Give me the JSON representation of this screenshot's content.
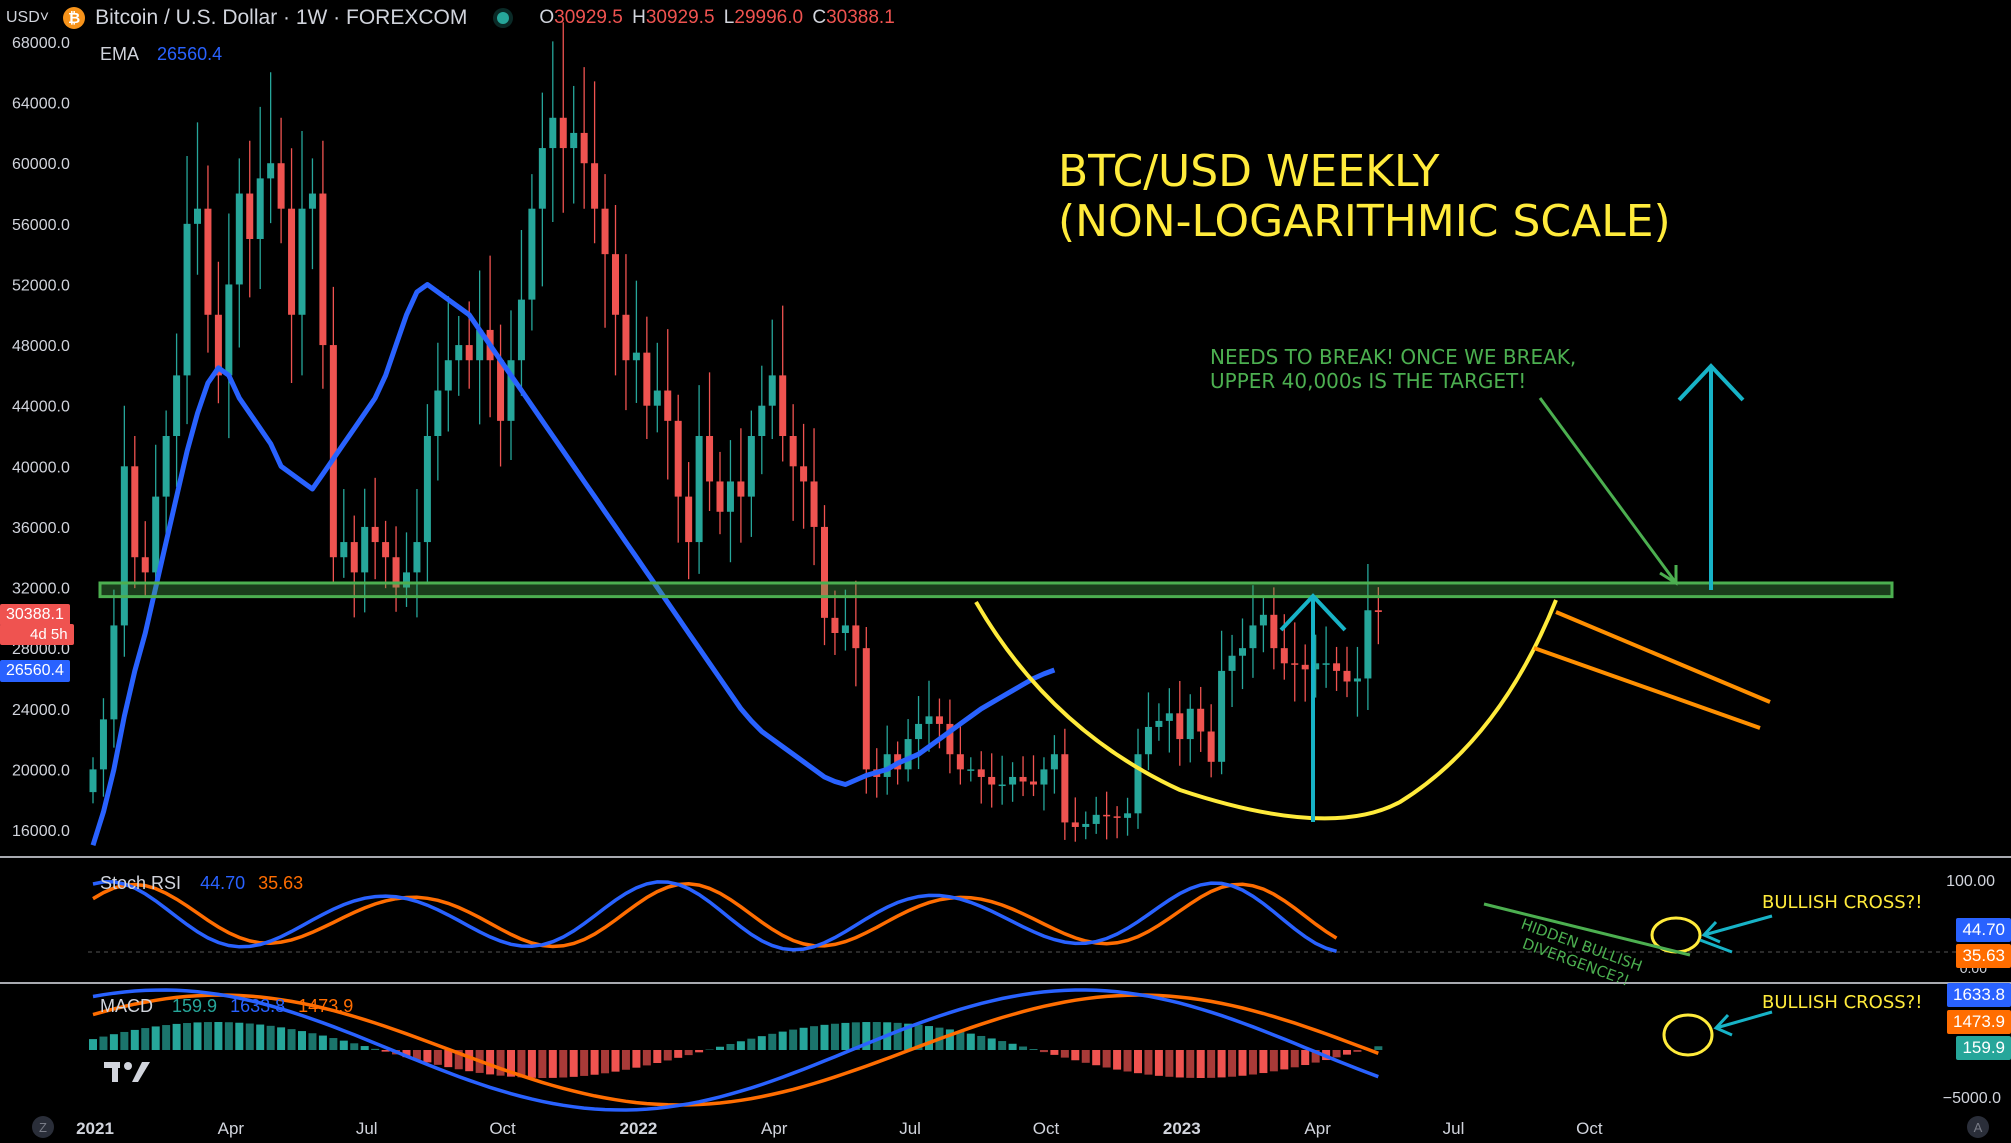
{
  "header": {
    "currency": "USD",
    "currency_caret": "˅",
    "coin_glyph": "₿",
    "symbol": "Bitcoin / U.S. Dollar · 1W · FOREXCOM",
    "ohlc": {
      "o_label": "O",
      "o": "30929.5",
      "h_label": "H",
      "h": "30929.5",
      "l_label": "L",
      "l": "29996.0",
      "c_label": "C",
      "c": "30388.1"
    }
  },
  "indicators": {
    "ema": {
      "label": "EMA",
      "value": "26560.4"
    },
    "stoch": {
      "label": "Stoch RSI",
      "k": "44.70",
      "d": "35.63"
    },
    "macd": {
      "label": "MACD",
      "hist": "159.9",
      "macd": "1633.8",
      "signal": "1473.9"
    }
  },
  "price_tags": {
    "last": "30388.1",
    "countdown": "4d 5h",
    "ema": "26560.4"
  },
  "scales": {
    "stoch_top": "100.00",
    "stoch_bottom": "0.00",
    "macd_bottom": "−5000.0",
    "stoch_k": "44.70",
    "stoch_d": "35.63",
    "macd_macd": "1633.8",
    "macd_signal": "1473.9",
    "macd_hist": "159.9"
  },
  "annotations": {
    "title_line1": "BTC/USD WEEKLY",
    "title_line2": "(NON-LOGARITHMIC SCALE)",
    "note_line1": "NEEDS TO BREAK! ONCE WE BREAK,",
    "note_line2": "UPPER 40,000s IS THE TARGET!",
    "cross_stoch": "BULLISH CROSS?!",
    "cross_macd": "BULLISH CROSS?!",
    "div_line1": "HIDDEN BULLISH",
    "div_line2": "DIVERGENCE?!"
  },
  "corners": {
    "left": "Z",
    "right": "A"
  },
  "colors": {
    "up": "#26a69a",
    "down": "#ef5350",
    "ema": "#2962ff",
    "stoch_k": "#2962ff",
    "stoch_d": "#ff6d00",
    "resistance": "#4caf50",
    "cup": "#ffeb3b",
    "arrow": "#17b3c7",
    "text_yellow": "#ffeb3b",
    "text_green": "#4caf50"
  },
  "chart_data": {
    "type": "candlestick",
    "x_label_text": [
      "2021",
      "Apr",
      "Jul",
      "Oct",
      "2022",
      "Apr",
      "Jul",
      "Oct",
      "2023",
      "Apr",
      "Jul",
      "Oct"
    ],
    "x_label_weeks": [
      0,
      13,
      26,
      39,
      52,
      65,
      78,
      91,
      104,
      117,
      130,
      143
    ],
    "y_ticks": [
      16000,
      20000,
      24000,
      28000,
      32000,
      36000,
      40000,
      44000,
      48000,
      52000,
      56000,
      60000,
      64000,
      68000
    ],
    "y_range": [
      14000,
      69000
    ],
    "resistance_zone": [
      31400,
      32300
    ],
    "closes": [
      20000,
      23300,
      29500,
      40000,
      34000,
      33000,
      38000,
      42000,
      46000,
      56000,
      57000,
      50000,
      46000,
      52000,
      58000,
      55000,
      59000,
      60000,
      57000,
      50000,
      57000,
      58000,
      48000,
      34000,
      35000,
      33000,
      36000,
      35000,
      34000,
      32000,
      33000,
      35000,
      42000,
      45000,
      47000,
      48000,
      47000,
      49000,
      47000,
      43000,
      47000,
      51000,
      57000,
      61000,
      63000,
      61000,
      62000,
      60000,
      57000,
      54000,
      50000,
      47000,
      47500,
      44000,
      45000,
      43000,
      38000,
      35000,
      42000,
      39000,
      37000,
      39000,
      38000,
      42000,
      44000,
      46000,
      42000,
      40000,
      39000,
      36000,
      30000,
      29000,
      29500,
      28000,
      20000,
      19500,
      21000,
      20000,
      22000,
      23000,
      23500,
      23000,
      21000,
      20000,
      20000,
      19500,
      19000,
      19000,
      19500,
      19200,
      19000,
      20000,
      21000,
      16500,
      16200,
      16400,
      17000,
      16900,
      16800,
      17100,
      21000,
      22800,
      23200,
      23700,
      22000,
      24000,
      22500,
      20500,
      26500,
      27500,
      28000,
      29500,
      30200,
      28000,
      27000,
      26900,
      26600,
      27000,
      27000,
      26500,
      25800,
      26000,
      30500,
      30388
    ],
    "ema": [
      15000,
      17200,
      20000,
      23500,
      26500,
      29000,
      32000,
      35000,
      38000,
      41000,
      43500,
      45500,
      46500,
      46000,
      44500,
      43500,
      42500,
      41500,
      40000,
      39500,
      39000,
      38500,
      39500,
      40500,
      41500,
      42500,
      43500,
      44500,
      46000,
      48000,
      50000,
      51500,
      52000,
      51500,
      51000,
      50500,
      50000,
      49000,
      48000,
      47000,
      46000,
      45000,
      44000,
      43000,
      42000,
      41000,
      40000,
      39000,
      38000,
      37000,
      36000,
      35000,
      34000,
      33000,
      32000,
      31000,
      30000,
      29000,
      28000,
      27000,
      26000,
      25000,
      24000,
      23200,
      22500,
      22000,
      21500,
      21000,
      20500,
      20000,
      19500,
      19200,
      19000,
      19300,
      19600,
      19800,
      20000,
      20400,
      20700,
      21000,
      21500,
      22000,
      22500,
      23000,
      23500,
      24000,
      24400,
      24800,
      25200,
      25600,
      26000,
      26300,
      26560
    ]
  }
}
